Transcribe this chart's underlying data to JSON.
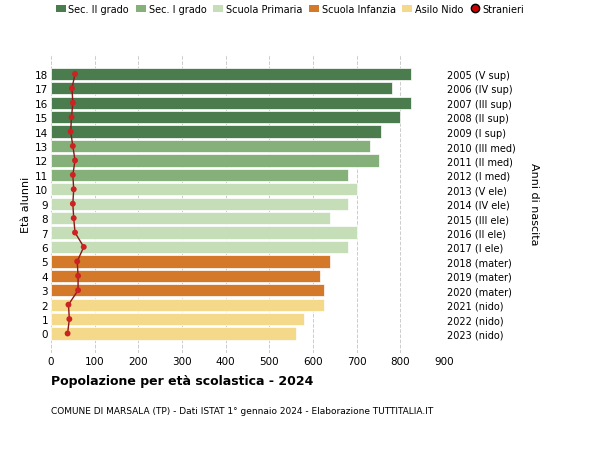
{
  "ages": [
    18,
    17,
    16,
    15,
    14,
    13,
    12,
    11,
    10,
    9,
    8,
    7,
    6,
    5,
    4,
    3,
    2,
    1,
    0
  ],
  "years_labels": [
    "2005 (V sup)",
    "2006 (IV sup)",
    "2007 (III sup)",
    "2008 (II sup)",
    "2009 (I sup)",
    "2010 (III med)",
    "2011 (II med)",
    "2012 (I med)",
    "2013 (V ele)",
    "2014 (IV ele)",
    "2015 (III ele)",
    "2016 (II ele)",
    "2017 (I ele)",
    "2018 (mater)",
    "2019 (mater)",
    "2020 (mater)",
    "2021 (nido)",
    "2022 (nido)",
    "2023 (nido)"
  ],
  "bar_values": [
    825,
    780,
    825,
    800,
    755,
    730,
    750,
    680,
    700,
    680,
    640,
    700,
    680,
    640,
    615,
    625,
    625,
    580,
    560
  ],
  "bar_colors": [
    "#4a7c4e",
    "#4a7c4e",
    "#4a7c4e",
    "#4a7c4e",
    "#4a7c4e",
    "#85b07a",
    "#85b07a",
    "#85b07a",
    "#c5deb8",
    "#c5deb8",
    "#c5deb8",
    "#c5deb8",
    "#c5deb8",
    "#d4782a",
    "#d4782a",
    "#d4782a",
    "#f5d98a",
    "#f5d98a",
    "#f5d98a"
  ],
  "stranieri_values": [
    55,
    48,
    50,
    47,
    45,
    50,
    55,
    50,
    52,
    50,
    52,
    55,
    75,
    60,
    62,
    62,
    40,
    42,
    38
  ],
  "legend_labels": [
    "Sec. II grado",
    "Sec. I grado",
    "Scuola Primaria",
    "Scuola Infanzia",
    "Asilo Nido",
    "Stranieri"
  ],
  "legend_colors": [
    "#4a7c4e",
    "#85b07a",
    "#c5deb8",
    "#d4782a",
    "#f5d98a",
    "#cc0000"
  ],
  "ylabel_left": "Età alunni",
  "ylabel_right": "Anni di nascita",
  "title": "Popolazione per età scolastica - 2024",
  "subtitle": "COMUNE DI MARSALA (TP) - Dati ISTAT 1° gennaio 2024 - Elaborazione TUTTITALIA.IT",
  "xlim": [
    0,
    900
  ],
  "xticks": [
    0,
    100,
    200,
    300,
    400,
    500,
    600,
    700,
    800,
    900
  ],
  "bg_color": "#ffffff",
  "bar_height": 0.85,
  "grid_color": "#cccccc",
  "stranieri_line_color": "#8b1a1a",
  "stranieri_dot_color": "#cc2222"
}
